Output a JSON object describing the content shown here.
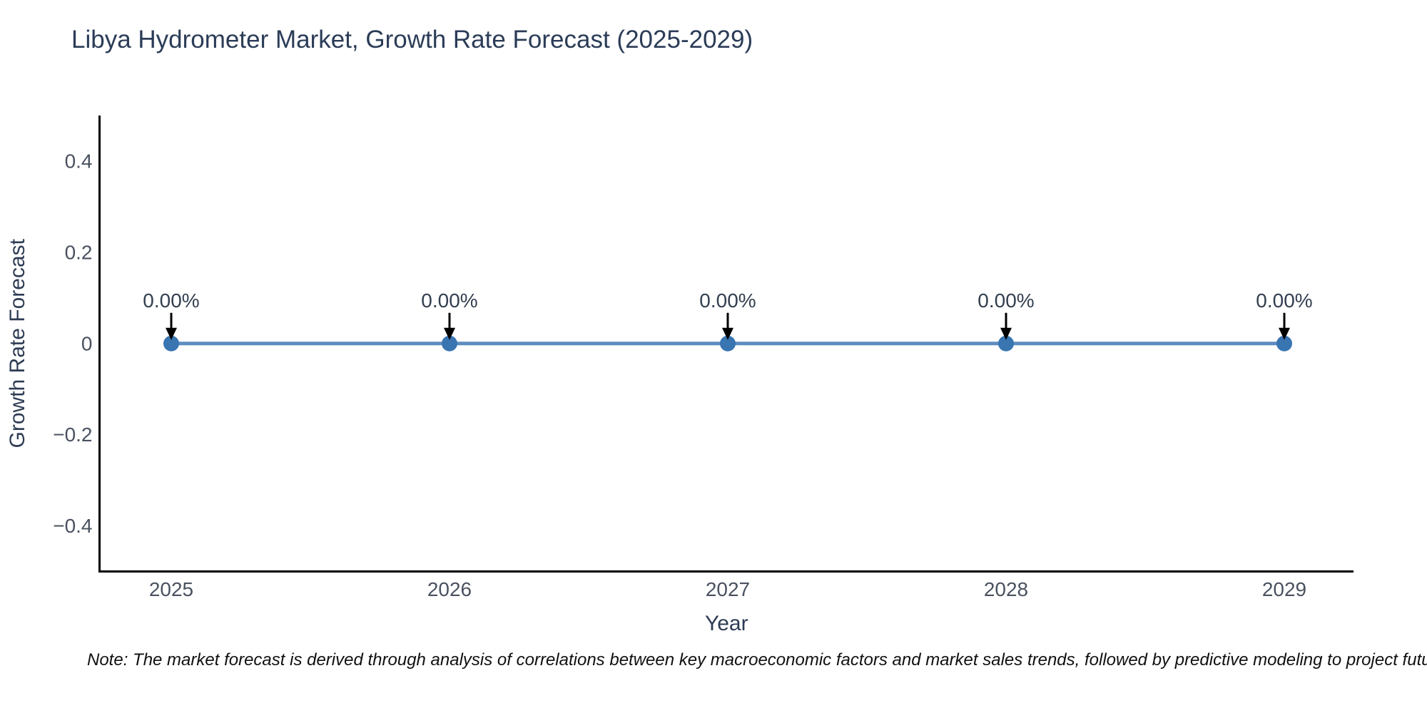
{
  "title": "Libya Hydrometer Market, Growth Rate Forecast (2025-2029)",
  "note": "Note: The market forecast is derived through analysis of correlations between key macroeconomic factors and market sales trends, followed by predictive modeling to project future sales",
  "chart_data": {
    "type": "line",
    "title": "Libya Hydrometer Market, Growth Rate Forecast (2025-2029)",
    "categories": [
      "2025",
      "2026",
      "2027",
      "2028",
      "2029"
    ],
    "values": [
      0,
      0,
      0,
      0,
      0
    ],
    "point_labels": [
      "0.00%",
      "0.00%",
      "0.00%",
      "0.00%",
      "0.00%"
    ],
    "xlabel": "Year",
    "ylabel": "Growth Rate Forecast",
    "ylim": [
      -0.5,
      0.5
    ],
    "yticks": [
      0.4,
      0.2,
      0,
      -0.2,
      -0.4
    ],
    "ytick_labels": [
      "0.4",
      "0.2",
      "0",
      "−0.2",
      "−0.4"
    ],
    "grid": false,
    "legend": "none",
    "annotation_arrow": "down-arrow",
    "colors": {
      "line": "#5d8cc0",
      "marker": "#3875b1",
      "arrow": "#000000",
      "axis_spine": "#000000",
      "title_text": "#2b3c57",
      "tick_text": "#4a5260",
      "axis_label_text": "#2e3c54",
      "annotation_text": "#333f50",
      "note_text": "#101010",
      "background": "#ffffff"
    }
  }
}
